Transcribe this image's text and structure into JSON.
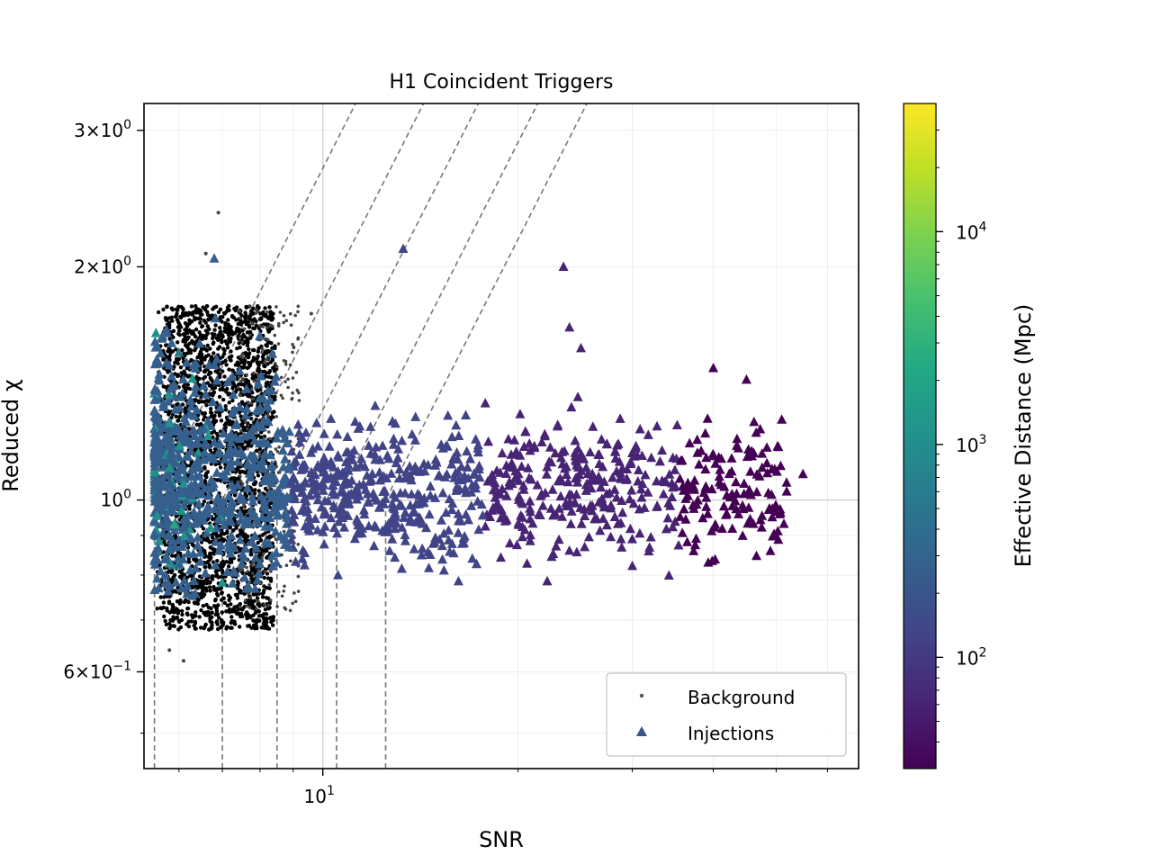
{
  "chart_data": {
    "type": "scatter",
    "title": "H1 Coincident Triggers",
    "xlabel": "SNR",
    "ylabel": "Reduced χ",
    "xscale": "log",
    "yscale": "log",
    "xlim": [
      5.3,
      67
    ],
    "ylim": [
      0.45,
      3.25
    ],
    "grid": true,
    "legend_position": "lower right",
    "x_ticks": [
      {
        "value": 10,
        "base": "10",
        "exp": "1"
      }
    ],
    "y_ticks": [
      {
        "value": 0.6,
        "mant": "6",
        "base": "10",
        "exp": "−1"
      },
      {
        "value": 1,
        "mant": "",
        "base": "10",
        "exp": "0"
      },
      {
        "value": 2,
        "mant": "2",
        "base": "10",
        "exp": "0"
      },
      {
        "value": 3,
        "mant": "3",
        "base": "10",
        "exp": "0"
      }
    ],
    "series": [
      {
        "name": "Background",
        "marker": "circle",
        "color": "#000000",
        "summary": {
          "snr_range": [
            5.5,
            9.6
          ],
          "chisq_range": [
            0.61,
            2.35
          ]
        }
      },
      {
        "name": "Injections",
        "marker": "triangle",
        "color": "#3b528b",
        "summary": {
          "snr_range": [
            5.5,
            61.5
          ],
          "chisq_range": [
            0.74,
            2.11
          ]
        }
      }
    ],
    "threshold_curves": [
      {
        "snr0": 5.5,
        "chisq0": 1.0
      },
      {
        "snr0": 7.0,
        "chisq0": 1.0
      },
      {
        "snr0": 8.5,
        "chisq0": 1.0
      },
      {
        "snr0": 10.5,
        "chisq0": 1.0
      },
      {
        "snr0": 12.5,
        "chisq0": 1.0
      }
    ],
    "colorbar": {
      "label": "Effective Distance (Mpc)",
      "colormap": "viridis",
      "scale": "log",
      "range": [
        30,
        40000
      ],
      "ticks": [
        {
          "value": 100,
          "base": "10",
          "exp": "2"
        },
        {
          "value": 1000,
          "base": "10",
          "exp": "3"
        },
        {
          "value": 10000,
          "base": "10",
          "exp": "4"
        }
      ]
    },
    "legend": [
      "Background",
      "Injections"
    ]
  }
}
